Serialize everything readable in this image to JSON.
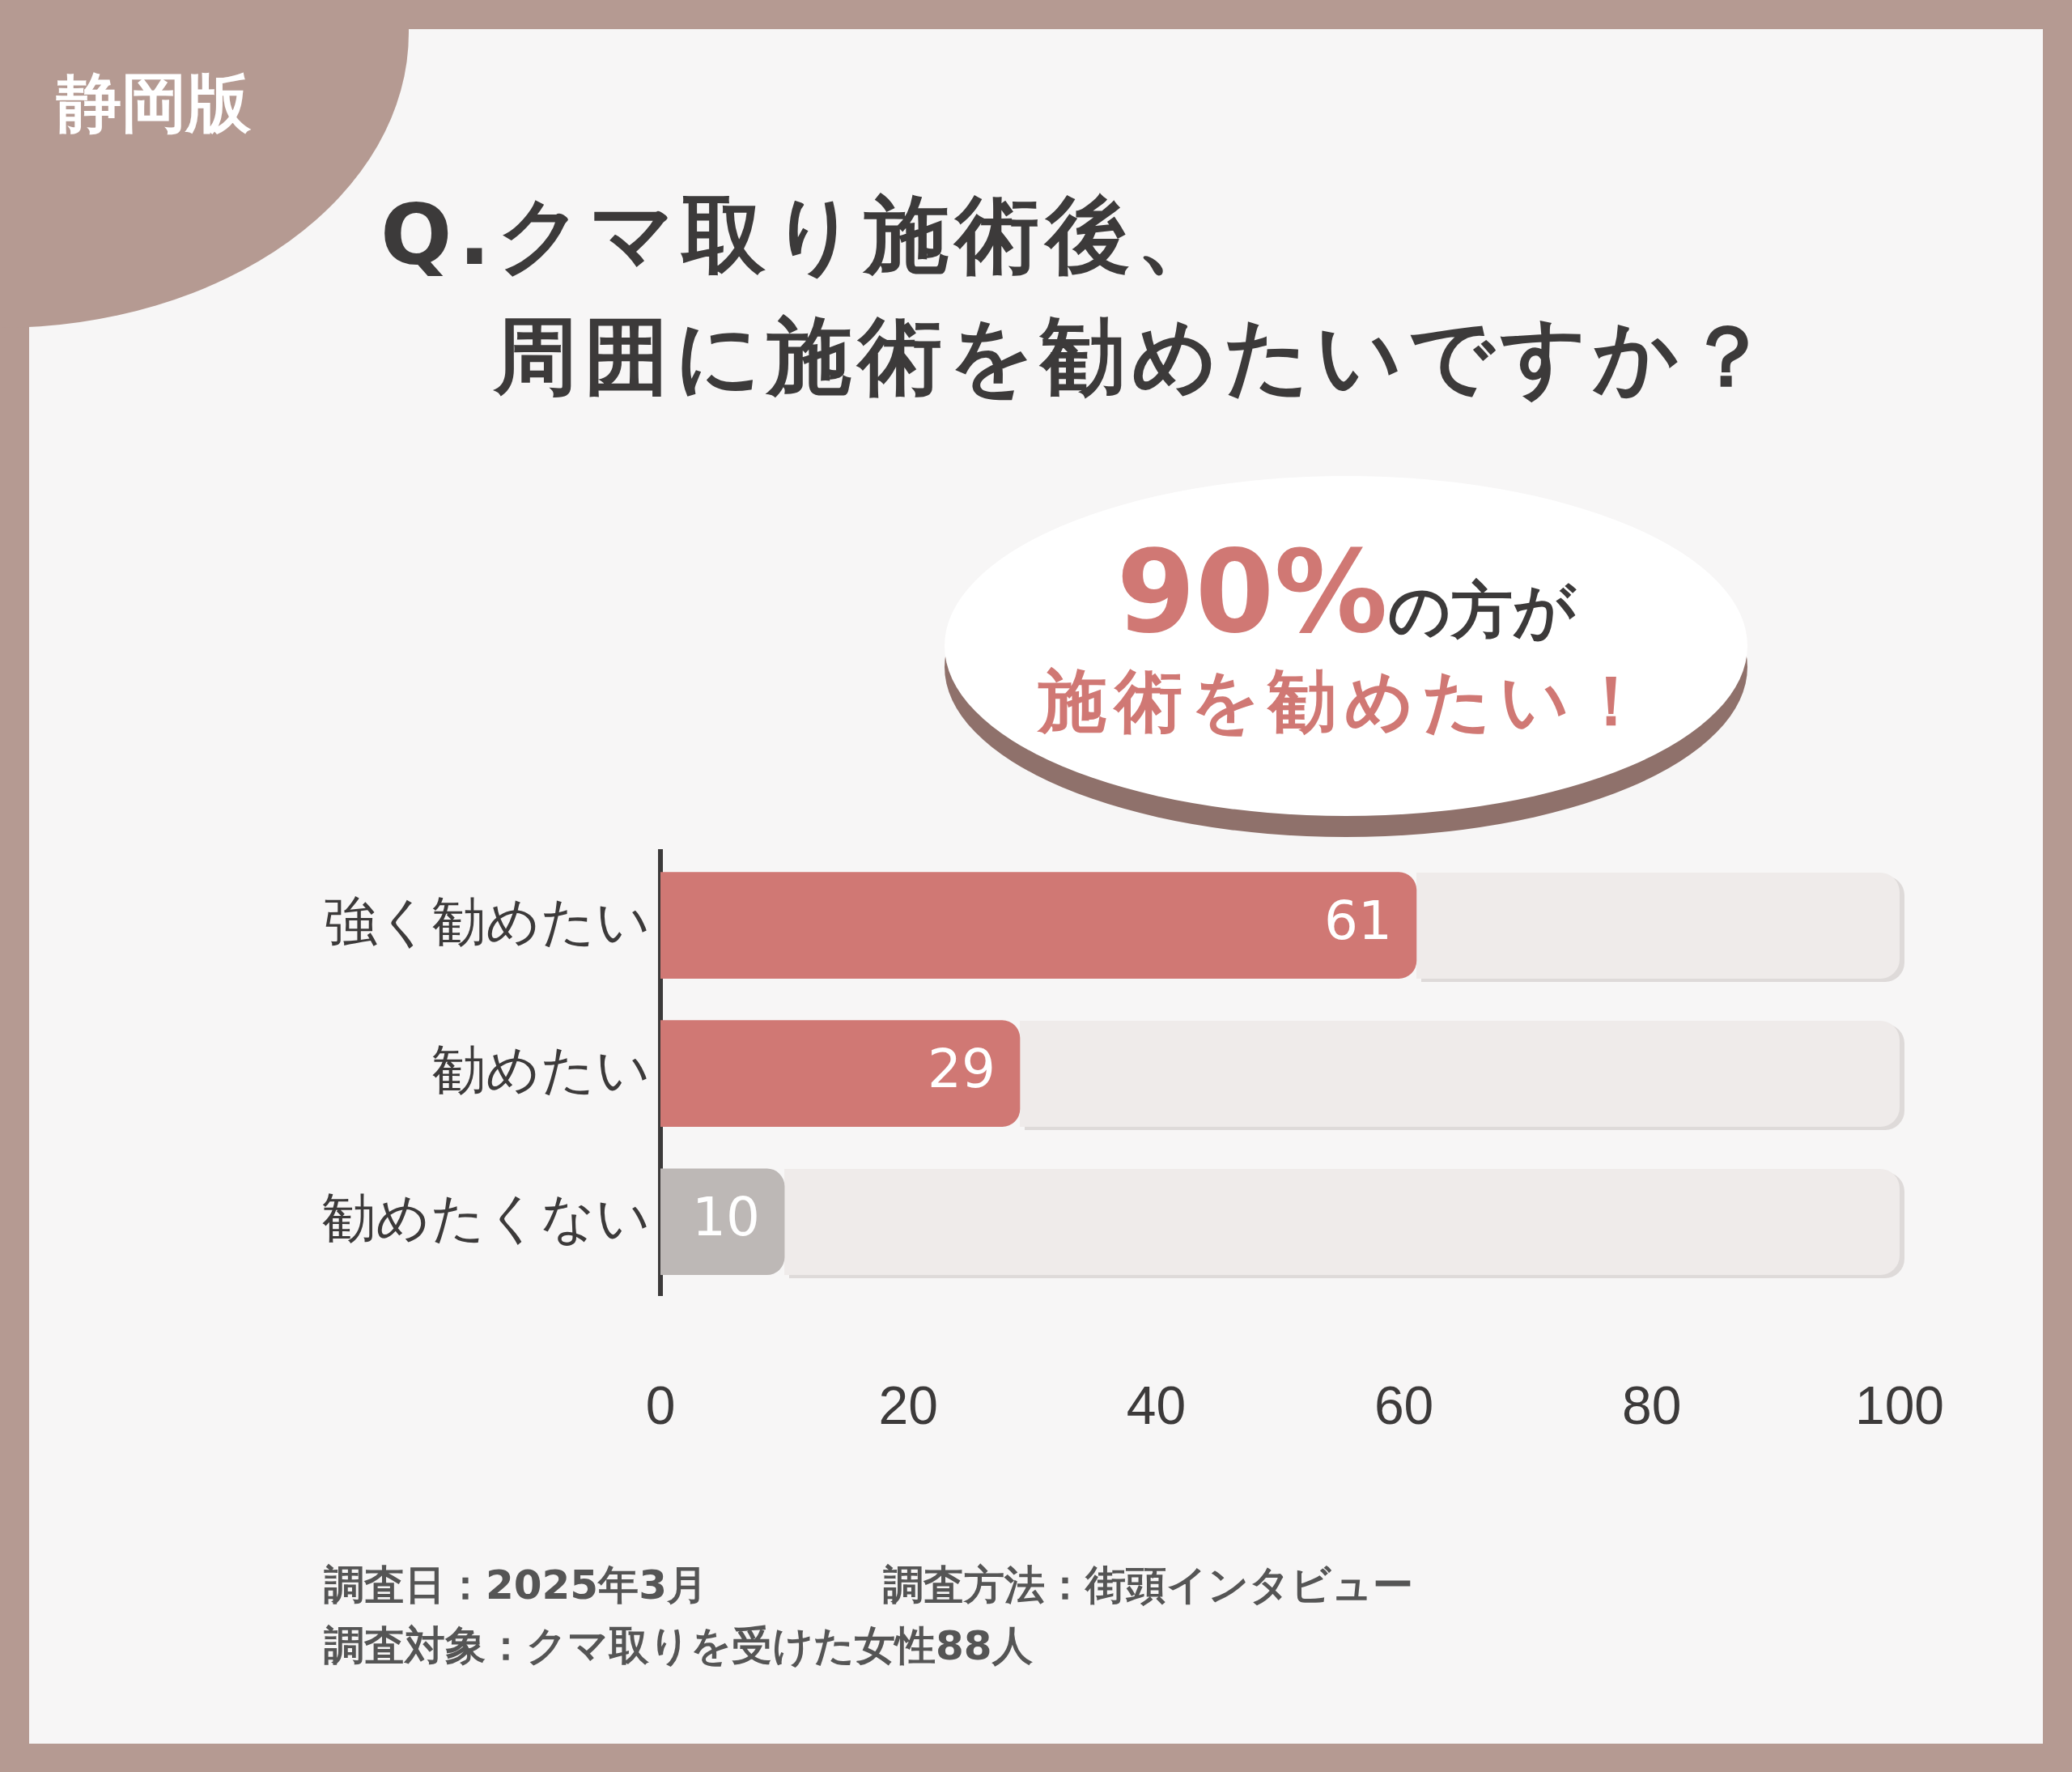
{
  "chart_data": {
    "type": "bar",
    "orientation": "horizontal",
    "title": "Q.クマ取り施術後、周囲に施術を勧めたいですか？",
    "categories": [
      "強く勧めたい",
      "勧めたい",
      "勧めたくない"
    ],
    "values": [
      61,
      29,
      10
    ],
    "colors": [
      "#d07874",
      "#d07874",
      "#bdb8b6"
    ],
    "xlim": [
      0,
      100
    ],
    "xticks": [
      0,
      20,
      40,
      60,
      80,
      100
    ],
    "grid": false,
    "legend": false,
    "data_labels": true,
    "annotations": [
      "静岡版",
      "90%の方が",
      "施術を勧めたい！",
      "調査日：2025年3月",
      "調査方法：街頭インタビュー",
      "調査対象：クマ取りを受けた女性88人"
    ]
  }
}
